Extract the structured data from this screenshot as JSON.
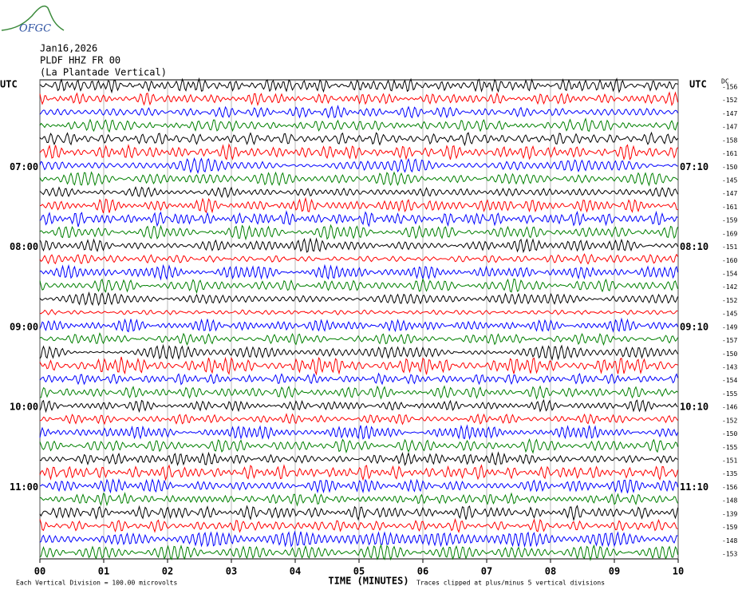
{
  "logo": "OFGC",
  "header": {
    "date": "Jan16,2026",
    "station": "PLDF HHZ FR 00",
    "location": "(La Plantade Vertical)"
  },
  "chart_data": {
    "type": "helicorder",
    "left_axis_label": "UTC",
    "right_axis_label": "UTC",
    "dc_label": "DC",
    "xlabel": "TIME (MINUTES)",
    "xlim": [
      0,
      10
    ],
    "xticks": [
      {
        "value": 0,
        "label": "00"
      },
      {
        "value": 1,
        "label": "01"
      },
      {
        "value": 2,
        "label": "02"
      },
      {
        "value": 3,
        "label": "03"
      },
      {
        "value": 4,
        "label": "04"
      },
      {
        "value": 5,
        "label": "05"
      },
      {
        "value": 6,
        "label": "06"
      },
      {
        "value": 7,
        "label": "07"
      },
      {
        "value": 8,
        "label": "08"
      },
      {
        "value": 9,
        "label": "09"
      },
      {
        "value": 10,
        "label": "10"
      }
    ],
    "left_labels": [
      null,
      null,
      null,
      null,
      null,
      null,
      "07:00",
      null,
      null,
      null,
      null,
      null,
      "08:00",
      null,
      null,
      null,
      null,
      null,
      "09:00",
      null,
      null,
      null,
      null,
      null,
      "10:00",
      null,
      null,
      null,
      null,
      null,
      "11:00",
      null,
      null,
      null,
      null,
      null
    ],
    "right_labels": [
      null,
      null,
      null,
      null,
      null,
      null,
      "07:10",
      null,
      null,
      null,
      null,
      null,
      "08:10",
      null,
      null,
      null,
      null,
      null,
      "09:10",
      null,
      null,
      null,
      null,
      null,
      "10:10",
      null,
      null,
      null,
      null,
      null,
      "11:10",
      null,
      null,
      null,
      null,
      null
    ],
    "dc_offsets": [
      -156,
      -152,
      -147,
      -147,
      -158,
      -161,
      -150,
      -145,
      -147,
      -161,
      -159,
      -169,
      -151,
      -160,
      -154,
      -142,
      -152,
      -145,
      -149,
      -157,
      -150,
      -143,
      -154,
      -155,
      -146,
      -152,
      -150,
      -155,
      -151,
      -135,
      -156,
      -148,
      -139,
      -159,
      -148,
      -153
    ],
    "colors": [
      "#000000",
      "#ff0000",
      "#0000ff",
      "#008000"
    ],
    "footer_left": "Each Vertical Division =  100.00 microvolts",
    "footer_right": "Traces clipped at plus/minus 5 vertical divisions"
  }
}
